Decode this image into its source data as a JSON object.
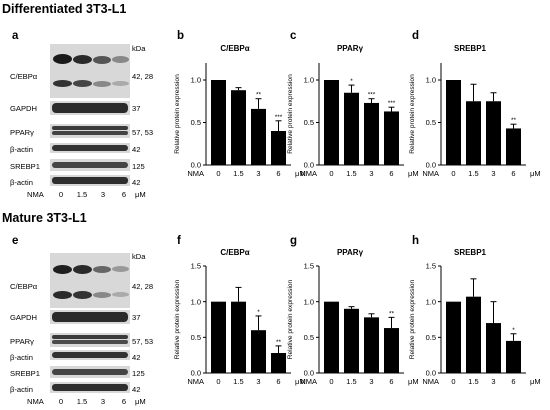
{
  "sections": [
    {
      "title": "Differentiated 3T3-L1",
      "blot": {
        "letter": "a",
        "kda_header": "kDa",
        "rows": [
          {
            "label": "C/EBPα",
            "kda": "42, 28"
          },
          {
            "label": "GAPDH",
            "kda": "37"
          },
          {
            "label": "PPARγ",
            "kda": "57, 53"
          },
          {
            "label": "β-actin",
            "kda": "42"
          },
          {
            "label": "SREBP1",
            "kda": "125"
          },
          {
            "label": "β-actin",
            "kda": "42"
          }
        ],
        "lanes_label": "NMA",
        "lanes": [
          "0",
          "1.5",
          "3",
          "6"
        ],
        "unit": "μM"
      }
    },
    {
      "title": "Mature 3T3-L1",
      "blot": {
        "letter": "e",
        "kda_header": "kDa",
        "rows": [
          {
            "label": "C/EBPα",
            "kda": "42, 28"
          },
          {
            "label": "GAPDH",
            "kda": "37"
          },
          {
            "label": "PPARγ",
            "kda": "57, 53"
          },
          {
            "label": "β-actin",
            "kda": "42"
          },
          {
            "label": "SREBP1",
            "kda": "125"
          },
          {
            "label": "β-actin",
            "kda": "42"
          }
        ],
        "lanes_label": "NMA",
        "lanes": [
          "0",
          "1.5",
          "3",
          "6"
        ],
        "unit": "μM"
      }
    }
  ],
  "chart_data": [
    {
      "panel": "b",
      "type": "bar",
      "title": "C/EBPα",
      "ylabel": "Relative protein expression",
      "xlabel_prefix": "NMA",
      "unit": "μM",
      "categories": [
        "0",
        "1.5",
        "3",
        "6"
      ],
      "values": [
        1.0,
        0.88,
        0.66,
        0.4
      ],
      "errors": [
        0.0,
        0.03,
        0.12,
        0.12
      ],
      "significance": [
        "",
        "",
        "**",
        "***"
      ],
      "ylim": [
        0,
        1.2
      ],
      "yticks": [
        "0.0",
        "0.5",
        "1.0"
      ]
    },
    {
      "panel": "c",
      "type": "bar",
      "title": "PPARγ",
      "ylabel": "Relative protein expression",
      "xlabel_prefix": "NMA",
      "unit": "μM",
      "categories": [
        "0",
        "1.5",
        "3",
        "6"
      ],
      "values": [
        1.0,
        0.85,
        0.73,
        0.63
      ],
      "errors": [
        0.0,
        0.09,
        0.05,
        0.05
      ],
      "significance": [
        "",
        "*",
        "***",
        "***"
      ],
      "ylim": [
        0,
        1.2
      ],
      "yticks": [
        "0.0",
        "0.5",
        "1.0"
      ]
    },
    {
      "panel": "d",
      "type": "bar",
      "title": "SREBP1",
      "ylabel": "Relative protein expression",
      "xlabel_prefix": "NMA",
      "unit": "μM",
      "categories": [
        "0",
        "1.5",
        "3",
        "6"
      ],
      "values": [
        1.0,
        0.75,
        0.75,
        0.43
      ],
      "errors": [
        0.0,
        0.2,
        0.1,
        0.05
      ],
      "significance": [
        "",
        "",
        "",
        "**"
      ],
      "ylim": [
        0,
        1.2
      ],
      "yticks": [
        "0.0",
        "0.5",
        "1.0"
      ]
    },
    {
      "panel": "f",
      "type": "bar",
      "title": "C/EBPα",
      "ylabel": "Relative protein expression",
      "xlabel_prefix": "NMA",
      "unit": "μM",
      "categories": [
        "0",
        "1.5",
        "3",
        "6"
      ],
      "values": [
        1.0,
        1.0,
        0.6,
        0.28
      ],
      "errors": [
        0.0,
        0.2,
        0.2,
        0.1
      ],
      "significance": [
        "",
        "",
        "*",
        "**"
      ],
      "ylim": [
        0,
        1.5
      ],
      "yticks": [
        "0.0",
        "0.5",
        "1.0",
        "1.5"
      ]
    },
    {
      "panel": "g",
      "type": "bar",
      "title": "PPARγ",
      "ylabel": "Relative protein expression",
      "xlabel_prefix": "NMA",
      "unit": "μM",
      "categories": [
        "0",
        "1.5",
        "3",
        "6"
      ],
      "values": [
        1.0,
        0.9,
        0.78,
        0.63
      ],
      "errors": [
        0.0,
        0.03,
        0.05,
        0.15
      ],
      "significance": [
        "",
        "",
        "",
        "**"
      ],
      "ylim": [
        0,
        1.5
      ],
      "yticks": [
        "0.0",
        "0.5",
        "1.0",
        "1.5"
      ]
    },
    {
      "panel": "h",
      "type": "bar",
      "title": "SREBP1",
      "ylabel": "Relative protein expression",
      "xlabel_prefix": "NMA",
      "unit": "μM",
      "categories": [
        "0",
        "1.5",
        "3",
        "6"
      ],
      "values": [
        1.0,
        1.07,
        0.7,
        0.45
      ],
      "errors": [
        0.0,
        0.25,
        0.3,
        0.1
      ],
      "significance": [
        "",
        "",
        "",
        "*"
      ],
      "ylim": [
        0,
        1.5
      ],
      "yticks": [
        "0.0",
        "0.5",
        "1.0",
        "1.5"
      ]
    }
  ]
}
